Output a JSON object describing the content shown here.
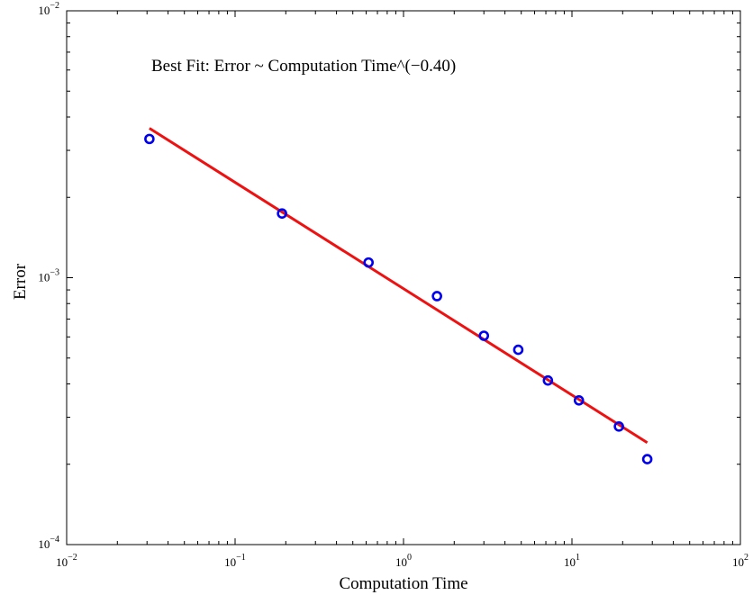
{
  "chart_data": {
    "type": "scatter",
    "x_scale": "log",
    "y_scale": "log",
    "xlabel": "Computation Time",
    "ylabel": "Error",
    "xlim": [
      0.01,
      100
    ],
    "ylim": [
      0.0001,
      0.01
    ],
    "grid": false,
    "annotation": "Best Fit: Error ~ Computation Time^(−0.40)",
    "x_ticks": [
      {
        "value": 0.01,
        "base": "10",
        "exp": "−2"
      },
      {
        "value": 0.1,
        "base": "10",
        "exp": "−1"
      },
      {
        "value": 1,
        "base": "10",
        "exp": "0"
      },
      {
        "value": 10,
        "base": "10",
        "exp": "1"
      },
      {
        "value": 100,
        "base": "10",
        "exp": "2"
      }
    ],
    "y_ticks": [
      {
        "value": 0.0001,
        "base": "10",
        "exp": "−4"
      },
      {
        "value": 0.001,
        "base": "10",
        "exp": "−3"
      },
      {
        "value": 0.01,
        "base": "10",
        "exp": "−2"
      }
    ],
    "series": [
      {
        "type": "scatter",
        "color": "#0000ee",
        "marker": "circle",
        "points": [
          {
            "x": 0.031,
            "y": 0.00331
          },
          {
            "x": 0.19,
            "y": 0.00174
          },
          {
            "x": 0.62,
            "y": 0.00114
          },
          {
            "x": 1.58,
            "y": 0.000853
          },
          {
            "x": 3.0,
            "y": 0.000606
          },
          {
            "x": 4.8,
            "y": 0.000537
          },
          {
            "x": 7.2,
            "y": 0.000412
          },
          {
            "x": 11.0,
            "y": 0.000347
          },
          {
            "x": 19.0,
            "y": 0.000277
          },
          {
            "x": 28.0,
            "y": 0.000209
          }
        ]
      },
      {
        "type": "line",
        "color": "#ee1111",
        "points": [
          {
            "x": 0.031,
            "y": 0.00363
          },
          {
            "x": 28.0,
            "y": 0.000241
          }
        ]
      }
    ]
  }
}
